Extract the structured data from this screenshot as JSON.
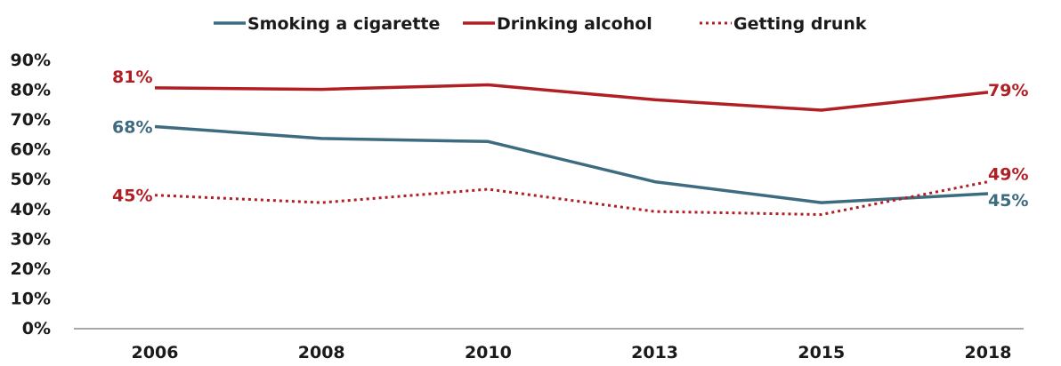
{
  "chart_data": {
    "type": "line",
    "title": "",
    "xlabel": "",
    "ylabel": "",
    "categories": [
      "2006",
      "2008",
      "2010",
      "2013",
      "2015",
      "2018"
    ],
    "ylim": [
      0,
      90
    ],
    "y_ticks": [
      "0%",
      "10%",
      "20%",
      "30%",
      "40%",
      "50%",
      "60%",
      "70%",
      "80%",
      "90%"
    ],
    "grid": false,
    "legend_position": "top",
    "series": [
      {
        "name": "Smoking a cigarette",
        "values": [
          67.5,
          63.5,
          62.5,
          49,
          42,
          45
        ],
        "color": "#3d6b80",
        "style": "solid",
        "labels": [
          {
            "index": 0,
            "text": "68%"
          },
          {
            "index": 5,
            "text": "45%"
          }
        ]
      },
      {
        "name": "Drinking alcohol",
        "values": [
          80.5,
          80,
          81.5,
          76.5,
          73,
          79
        ],
        "color": "#b01f24",
        "style": "solid",
        "labels": [
          {
            "index": 0,
            "text": "81%"
          },
          {
            "index": 5,
            "text": "79%"
          }
        ]
      },
      {
        "name": "Getting drunk",
        "values": [
          44.5,
          42,
          46.5,
          39,
          38,
          49
        ],
        "color": "#b01f24",
        "style": "dotted",
        "labels": [
          {
            "index": 0,
            "text": "45%"
          },
          {
            "index": 5,
            "text": "49%"
          }
        ]
      }
    ]
  }
}
